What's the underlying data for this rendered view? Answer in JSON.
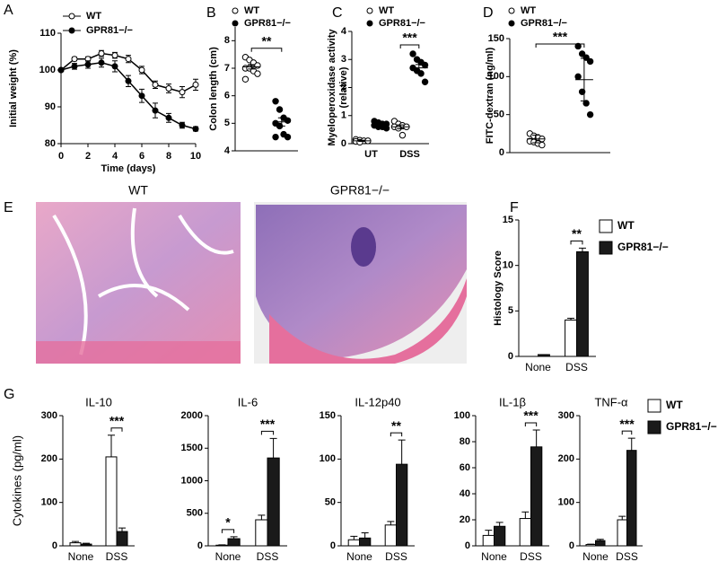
{
  "panel_labels": [
    "A",
    "B",
    "C",
    "D",
    "E",
    "F",
    "G"
  ],
  "histology": {
    "titles": [
      "WT",
      "GPR81−/−"
    ]
  },
  "chart_data": [
    {
      "type": "line",
      "xlabel": "Time (days)",
      "ylabel": "Initial weight (%)",
      "x": [
        0,
        1,
        2,
        3,
        4,
        5,
        6,
        7,
        8,
        9,
        10
      ],
      "xlim": [
        0,
        10
      ],
      "xticks": [
        0,
        2,
        4,
        6,
        8,
        10
      ],
      "ylim": [
        80,
        110
      ],
      "yticks": [
        80,
        90,
        100,
        110
      ],
      "series": [
        {
          "name": "WT",
          "color": "#000000",
          "marker_fill": "#ffffff",
          "values": [
            100,
            103,
            103,
            104.5,
            104,
            103,
            100,
            96,
            95,
            94,
            96
          ],
          "errors": [
            0.3,
            0.5,
            0.6,
            0.8,
            0.8,
            1,
            1,
            1,
            1.2,
            1.5,
            1.5
          ]
        },
        {
          "name": "GPR81−/−",
          "color": "#000000",
          "marker_fill": "#000000",
          "values": [
            100,
            101,
            101.5,
            102,
            101,
            97,
            93,
            89,
            87,
            85,
            84
          ],
          "errors": [
            0.3,
            0.8,
            1,
            1.2,
            1.5,
            1.5,
            1.8,
            2,
            1.2,
            0.8,
            0.6
          ]
        }
      ]
    },
    {
      "type": "dot",
      "ylabel": "Colon length (cm)",
      "ylim": [
        4,
        8.5
      ],
      "yticks": [
        4,
        5,
        6,
        7,
        8
      ],
      "significance": "**",
      "series": [
        {
          "name": "WT",
          "marker_fill": "#ffffff",
          "values": [
            7.4,
            7.3,
            7.2,
            7.1,
            7.0,
            7.0,
            6.9,
            6.8,
            6.6
          ],
          "mean": 7.05,
          "sem": 0.08
        },
        {
          "name": "GPR81−/−",
          "marker_fill": "#000000",
          "values": [
            5.8,
            5.5,
            5.2,
            5.1,
            5.0,
            4.9,
            4.6,
            4.5,
            4.5
          ],
          "mean": 5.05,
          "sem": 0.15
        }
      ]
    },
    {
      "type": "dot",
      "ylabel": [
        "Myeloperoxidase activity",
        "(relative)"
      ],
      "categories": [
        "UT",
        "DSS"
      ],
      "ylim": [
        0,
        4
      ],
      "yticks": [
        0,
        1,
        2,
        3,
        4
      ],
      "significance": [
        null,
        "***"
      ],
      "series": [
        {
          "name": "WT",
          "marker_fill": "#ffffff",
          "values": [
            [
              0.15,
              0.12,
              0.1,
              0.1,
              0.08,
              0.05
            ],
            [
              0.8,
              0.7,
              0.65,
              0.6,
              0.6,
              0.55,
              0.3
            ]
          ],
          "mean": [
            0.1,
            0.6
          ],
          "sem": [
            0.02,
            0.07
          ]
        },
        {
          "name": "GPR81−/−",
          "marker_fill": "#000000",
          "values": [
            [
              0.8,
              0.75,
              0.7,
              0.7,
              0.65,
              0.6,
              0.6,
              0.55
            ],
            [
              3.2,
              3.0,
              2.9,
              2.8,
              2.7,
              2.6,
              2.5,
              2.2
            ]
          ],
          "mean": [
            0.68,
            2.7
          ],
          "sem": [
            0.05,
            0.12
          ]
        }
      ]
    },
    {
      "type": "dot",
      "ylabel": "FITC-dextran (ng/ml)",
      "ylim": [
        0,
        150
      ],
      "yticks": [
        0,
        50,
        100,
        150
      ],
      "significance": "***",
      "series": [
        {
          "name": "WT",
          "marker_fill": "#ffffff",
          "values": [
            25,
            22,
            20,
            18,
            15,
            14,
            12,
            10
          ],
          "mean": 18,
          "sem": 5
        },
        {
          "name": "GPR81−/−",
          "marker_fill": "#000000",
          "values": [
            140,
            130,
            125,
            120,
            100,
            80,
            65,
            50
          ],
          "mean": 96,
          "sem": 28
        }
      ]
    },
    {
      "type": "bar",
      "ylabel": "Histology Score",
      "categories": [
        "None",
        "DSS"
      ],
      "ylim": [
        0,
        15
      ],
      "yticks": [
        0,
        5,
        10,
        15
      ],
      "significance": [
        null,
        "**"
      ],
      "series": [
        {
          "name": "WT",
          "color": "#ffffff",
          "values": [
            0,
            4
          ],
          "errors": [
            0,
            0.2
          ]
        },
        {
          "name": "GPR81−/−",
          "color": "#1a1a1a",
          "values": [
            0.2,
            11.5
          ],
          "errors": [
            0,
            0.4
          ]
        }
      ]
    },
    {
      "type": "bar-group",
      "ylabel": "Cytokines (pg/ml)",
      "categories": [
        "None",
        "DSS"
      ],
      "series": [
        {
          "name": "WT",
          "color": "#ffffff"
        },
        {
          "name": "GPR81−/−",
          "color": "#1a1a1a"
        }
      ],
      "panels": [
        {
          "title": "IL-10",
          "ylim": [
            0,
            300
          ],
          "yticks": [
            0,
            100,
            200,
            300
          ],
          "values": [
            [
              7,
              205
            ],
            [
              4,
              33
            ]
          ],
          "errors": [
            [
              3,
              50
            ],
            [
              2,
              8
            ]
          ],
          "significance": [
            null,
            "***"
          ]
        },
        {
          "title": "IL-6",
          "ylim": [
            0,
            2000
          ],
          "yticks": [
            0,
            500,
            1000,
            1500,
            2000
          ],
          "values": [
            [
              10,
              400
            ],
            [
              110,
              1350
            ]
          ],
          "errors": [
            [
              5,
              70
            ],
            [
              30,
              300
            ]
          ],
          "significance": [
            "*",
            "***"
          ]
        },
        {
          "title": "IL-12p40",
          "ylim": [
            0,
            150
          ],
          "yticks": [
            0,
            50,
            100,
            150
          ],
          "values": [
            [
              7,
              24
            ],
            [
              9,
              94
            ]
          ],
          "errors": [
            [
              4,
              4
            ],
            [
              6,
              28
            ]
          ],
          "significance": [
            null,
            "**"
          ]
        },
        {
          "title": "IL-1β",
          "ylim": [
            0,
            100
          ],
          "yticks": [
            0,
            20,
            40,
            60,
            80,
            100
          ],
          "values": [
            [
              8,
              21
            ],
            [
              15,
              76
            ]
          ],
          "errors": [
            [
              4,
              5
            ],
            [
              3,
              13
            ]
          ],
          "significance": [
            null,
            "***"
          ]
        },
        {
          "title": "TNF-α",
          "ylim": [
            0,
            300
          ],
          "yticks": [
            0,
            100,
            200,
            300
          ],
          "values": [
            [
              3,
              60
            ],
            [
              12,
              220
            ]
          ],
          "errors": [
            [
              1,
              8
            ],
            [
              3,
              28
            ]
          ],
          "significance": [
            null,
            "***"
          ]
        }
      ]
    }
  ]
}
